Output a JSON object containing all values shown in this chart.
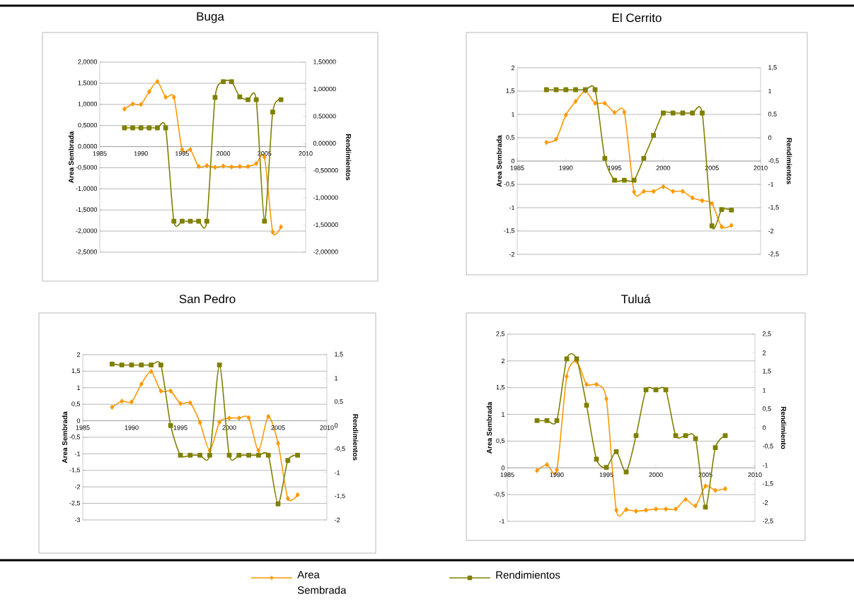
{
  "chart_data": [
    {
      "type": "line",
      "title": "Buga",
      "ylabel": "Area Sembrada",
      "y2label": "Rendimientos",
      "grid": "y",
      "x": [
        1988,
        1989,
        1990,
        1991,
        1992,
        1993,
        1994,
        1995,
        1996,
        1997,
        1998,
        1999,
        2000,
        2001,
        2002,
        2003,
        2004,
        2005,
        2006,
        2007
      ],
      "xlim": [
        1985,
        2010
      ],
      "xticks": [
        1985,
        1990,
        1995,
        2000,
        2005,
        2010
      ],
      "ylim": [
        -2.5,
        2
      ],
      "yticks": [
        {
          "value": -2.5,
          "label": "-2,5000"
        },
        {
          "value": -2,
          "label": "-2,0000"
        },
        {
          "value": -1.5,
          "label": "-1,5000"
        },
        {
          "value": -1,
          "label": "-1,0000"
        },
        {
          "value": -0.5,
          "label": "-0,5000"
        },
        {
          "value": 0,
          "label": "0,0000"
        },
        {
          "value": 0.5,
          "label": "0,5000"
        },
        {
          "value": 1,
          "label": "1,0000"
        },
        {
          "value": 1.5,
          "label": "1,5000"
        },
        {
          "value": 2,
          "label": "2,0000"
        }
      ],
      "y2lim": [
        -2,
        1.5
      ],
      "y2ticks": [
        {
          "value": -2,
          "label": "-2,00000"
        },
        {
          "value": -1.5,
          "label": "-1,50000"
        },
        {
          "value": -1,
          "label": "-1,00000"
        },
        {
          "value": -0.5,
          "label": "-0,50000"
        },
        {
          "value": 0,
          "label": "0,00000"
        },
        {
          "value": 0.5,
          "label": "0,50000"
        },
        {
          "value": 1,
          "label": "1,00000"
        },
        {
          "value": 1.5,
          "label": "1,50000"
        }
      ],
      "series": [
        {
          "color": "#ff9900",
          "marker": "diamond",
          "values": [
            0.89,
            1.01,
            1.0,
            1.3,
            1.54,
            1.17,
            1.17,
            -0.07,
            -0.07,
            -0.47,
            -0.45,
            -0.49,
            -0.46,
            -0.48,
            -0.47,
            -0.47,
            -0.4,
            -0.25,
            -2.02,
            -1.9
          ]
        },
        {
          "color": "#808000",
          "marker": "square",
          "axis": "y2",
          "values": [
            0.29,
            0.29,
            0.29,
            0.29,
            0.29,
            0.29,
            -1.43,
            -1.43,
            -1.43,
            -1.43,
            -1.43,
            0.85,
            1.14,
            1.14,
            0.86,
            0.81,
            0.81,
            -1.43,
            0.58,
            0.81
          ]
        }
      ]
    },
    {
      "type": "line",
      "title": "El Cerrito",
      "ylabel": "Area Sembrada",
      "y2label": "Rendimientos",
      "grid": "y",
      "x": [
        1988,
        1989,
        1990,
        1991,
        1992,
        1993,
        1994,
        1995,
        1996,
        1997,
        1998,
        1999,
        2000,
        2001,
        2002,
        2003,
        2004,
        2005,
        2006,
        2007
      ],
      "xlim": [
        1985,
        2010
      ],
      "xticks": [
        1985,
        1990,
        1995,
        2000,
        2005,
        2010
      ],
      "ylim": [
        -2,
        2
      ],
      "yticks": [
        -2,
        {
          "value": -1.5,
          "label": "-1,5"
        },
        -1,
        {
          "value": -0.5,
          "label": "-0,5"
        },
        0,
        {
          "value": 0.5,
          "label": "0,5"
        },
        1,
        {
          "value": 1.5,
          "label": "1,5"
        },
        2
      ],
      "y2lim": [
        -2.5,
        1.5
      ],
      "y2ticks": [
        {
          "value": -2.5,
          "label": "-2,5"
        },
        -2,
        {
          "value": -1.5,
          "label": "-1,5"
        },
        -1,
        {
          "value": -0.5,
          "label": "-0,5"
        },
        0,
        {
          "value": 0.5,
          "label": "0,5"
        },
        1,
        {
          "value": 1.5,
          "label": "1,5"
        }
      ],
      "series": [
        {
          "color": "#ff9900",
          "marker": "diamond",
          "values": [
            0.4,
            0.47,
            0.99,
            1.28,
            1.5,
            1.24,
            1.24,
            1.04,
            1.05,
            -0.66,
            -0.65,
            -0.65,
            -0.55,
            -0.65,
            -0.65,
            -0.79,
            -0.85,
            -0.91,
            -1.41,
            -1.38
          ]
        },
        {
          "color": "#808000",
          "marker": "square",
          "axis": "y2",
          "values": [
            1.03,
            1.03,
            1.03,
            1.03,
            1.03,
            1.03,
            -0.44,
            -0.91,
            -0.91,
            -0.91,
            -0.44,
            0.05,
            0.53,
            0.53,
            0.53,
            0.53,
            0.53,
            -1.89,
            -1.54,
            -1.55
          ]
        }
      ]
    },
    {
      "type": "line",
      "title": "San Pedro",
      "ylabel": "Area Sembrada",
      "y2label": "Rendimientos",
      "grid": "y",
      "x": [
        1988,
        1989,
        1990,
        1991,
        1992,
        1993,
        1994,
        1995,
        1996,
        1997,
        1998,
        1999,
        2000,
        2001,
        2002,
        2003,
        2004,
        2005,
        2006,
        2007
      ],
      "xlim": [
        1985,
        2010
      ],
      "xticks": [
        1985,
        1990,
        1995,
        2000,
        2005,
        2010
      ],
      "ylim": [
        -3,
        2
      ],
      "yticks": [
        -3,
        {
          "value": -2.5,
          "label": "-2,5"
        },
        -2,
        {
          "value": -1.5,
          "label": "-1,5"
        },
        -1,
        {
          "value": -0.5,
          "label": "-0,5"
        },
        0,
        {
          "value": 0.5,
          "label": "0,5"
        },
        1,
        {
          "value": 1.5,
          "label": "1,5"
        },
        2
      ],
      "y2lim": [
        -2,
        1.5
      ],
      "y2ticks": [
        -2,
        {
          "value": -1.5,
          "label": "-1,5"
        },
        -1,
        {
          "value": -0.5,
          "label": "-0,5"
        },
        0,
        {
          "value": 0.5,
          "label": "0,5"
        },
        1,
        {
          "value": 1.5,
          "label": "1,5"
        }
      ],
      "series": [
        {
          "color": "#ff9900",
          "marker": "diamond",
          "values": [
            0.41,
            0.59,
            0.57,
            1.11,
            1.49,
            0.9,
            0.9,
            0.52,
            0.54,
            -0.05,
            -0.9,
            -0.04,
            0.08,
            0.08,
            0.09,
            -0.9,
            0.13,
            -0.68,
            -2.35,
            -2.24
          ]
        },
        {
          "color": "#808000",
          "marker": "square",
          "axis": "y2",
          "values": [
            1.3,
            1.28,
            1.28,
            1.28,
            1.28,
            1.28,
            0.0,
            -0.63,
            -0.63,
            -0.63,
            -0.63,
            1.28,
            -0.63,
            -0.63,
            -0.63,
            -0.63,
            -0.63,
            -1.66,
            -0.74,
            -0.63
          ]
        }
      ]
    },
    {
      "type": "line",
      "title": "Tuluá",
      "ylabel": "Area Sembrada",
      "y2label": "Rendimiento",
      "grid": "y",
      "legend": "bottom",
      "x": [
        1988,
        1989,
        1990,
        1991,
        1992,
        1993,
        1994,
        1995,
        1996,
        1997,
        1998,
        1999,
        2000,
        2001,
        2002,
        2003,
        2004,
        2005,
        2006,
        2007
      ],
      "xlim": [
        1985,
        2010
      ],
      "xticks": [
        1985,
        1990,
        1995,
        2000,
        2005,
        2010
      ],
      "ylim": [
        -1,
        2.5
      ],
      "yticks": [
        -1,
        {
          "value": -0.5,
          "label": "-0,5"
        },
        0,
        {
          "value": 0.5,
          "label": "0,5"
        },
        1,
        {
          "value": 1.5,
          "label": "1,5"
        },
        2,
        {
          "value": 2.5,
          "label": "2,5"
        }
      ],
      "y2lim": [
        -2.5,
        2.5
      ],
      "y2ticks": [
        {
          "value": -2.5,
          "label": "-2,5"
        },
        -2,
        {
          "value": -1.5,
          "label": "-1,5"
        },
        -1,
        {
          "value": -0.5,
          "label": "-0,5"
        },
        0,
        {
          "value": 0.5,
          "label": "0,5"
        },
        1,
        {
          "value": 1.5,
          "label": "1,5"
        },
        2,
        {
          "value": 2.5,
          "label": "2,5"
        }
      ],
      "series": [
        {
          "name": "Area Sembrada",
          "color": "#ff9900",
          "marker": "diamond",
          "values": [
            -0.05,
            0.06,
            -0.04,
            1.71,
            1.99,
            1.56,
            1.56,
            1.29,
            -0.79,
            -0.78,
            -0.81,
            -0.79,
            -0.77,
            -0.77,
            -0.77,
            -0.59,
            -0.71,
            -0.34,
            -0.42,
            -0.39
          ]
        },
        {
          "name": "Rendimientos",
          "color": "#808000",
          "marker": "square",
          "axis": "y2",
          "values": [
            0.19,
            0.19,
            0.19,
            1.84,
            1.84,
            0.6,
            -0.84,
            -1.06,
            -0.64,
            -1.18,
            -0.21,
            1.01,
            1.01,
            1.01,
            -0.21,
            -0.21,
            -0.29,
            -2.12,
            -0.53,
            -0.21
          ]
        }
      ]
    }
  ]
}
